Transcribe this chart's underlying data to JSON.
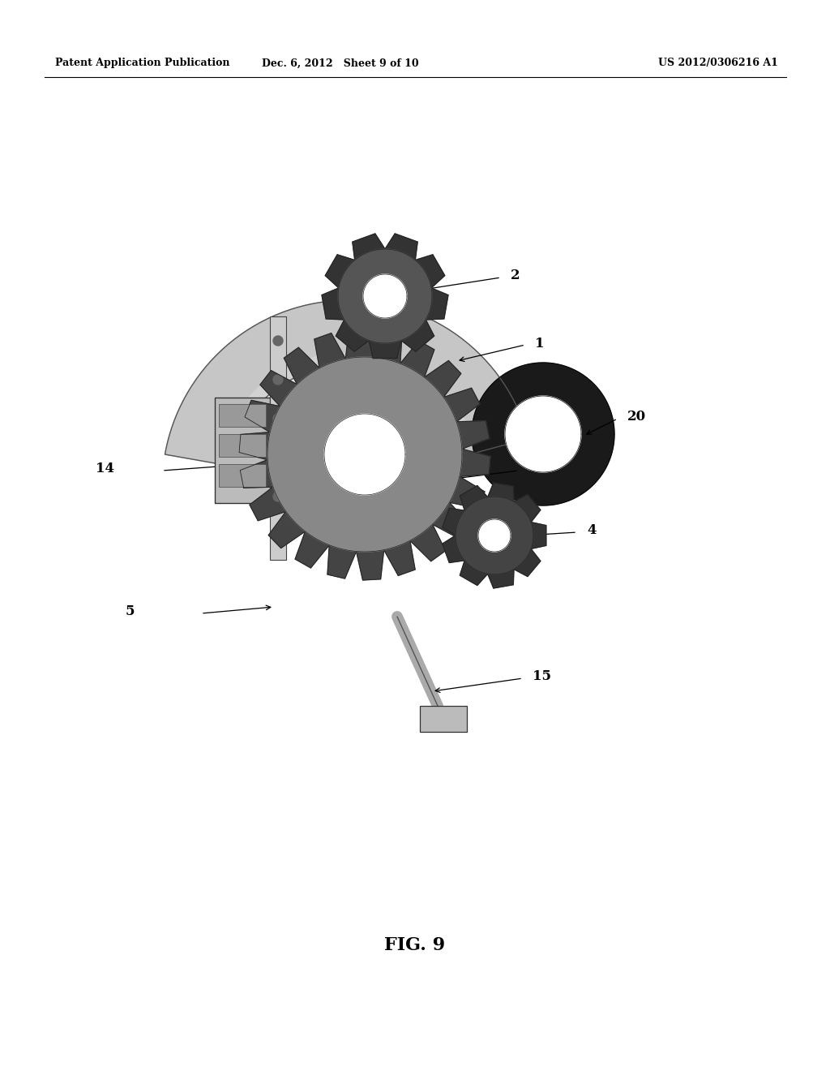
{
  "background_color": "#ffffff",
  "header_left": "Patent Application Publication",
  "header_center": "Dec. 6, 2012   Sheet 9 of 10",
  "header_right": "US 2012/0306216 A1",
  "caption": "FIG. 9",
  "gear_color_dark": "#3a3a3a",
  "gear_color_mid": "#555555",
  "gear_color_light": "#888888",
  "gear_color_fill": "#aaaaaa",
  "arc_color": "#bbbbbb",
  "box_color": "#aaaaaa"
}
